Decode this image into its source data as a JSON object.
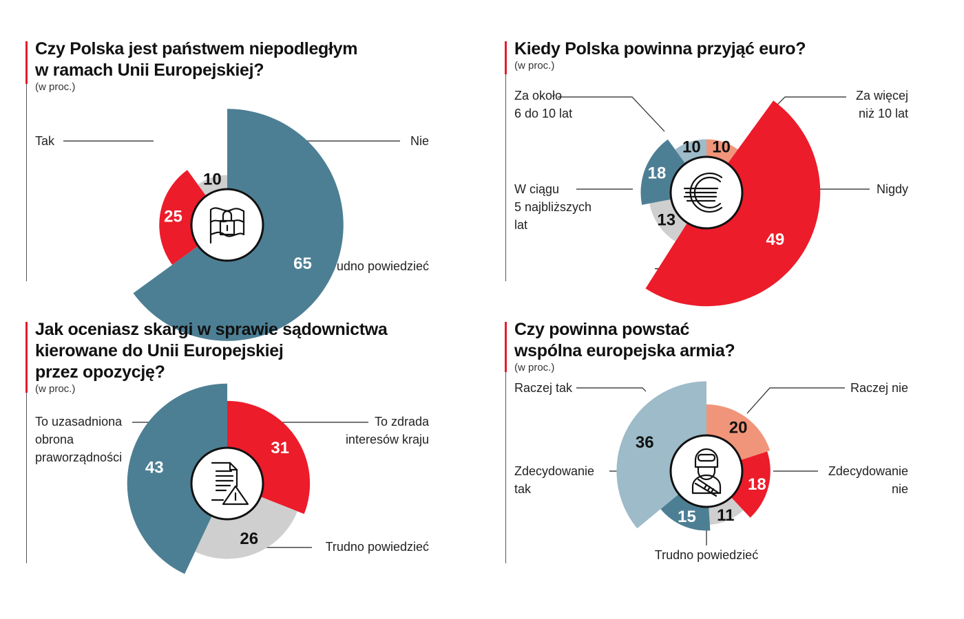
{
  "colors": {
    "accent": "#e31b2c",
    "dark_teal": "#4d7f94",
    "light_teal": "#9dbbc8",
    "red": "#ec1c2a",
    "salmon": "#f1957a",
    "gray": "#cfcfcf"
  },
  "chart_data": [
    {
      "type": "pie",
      "variant": "polar-area",
      "title": "Czy Polska jest państwem niepodległym w ramach Unii Europejskiej?",
      "title_lines": [
        "Czy Polska jest państwem niepodległym",
        "w ramach Unii Europejskiej?"
      ],
      "unit": "(w proc.)",
      "icon": "flag-padlock-icon",
      "slices": [
        {
          "label": "Tak",
          "label_lines": [
            "Tak"
          ],
          "value": 65,
          "color": "#4d7f94",
          "text_color": "#ffffff"
        },
        {
          "label": "Nie",
          "label_lines": [
            "Nie"
          ],
          "value": 25,
          "color": "#ec1c2a",
          "text_color": "#ffffff"
        },
        {
          "label": "Trudno powiedzieć",
          "label_lines": [
            "Trudno powiedzieć"
          ],
          "value": 10,
          "color": "#cfcfcf",
          "text_color": "#111111"
        }
      ]
    },
    {
      "type": "pie",
      "variant": "polar-area",
      "title": "Kiedy Polska powinna przyjąć euro?",
      "title_lines": [
        "Kiedy Polska powinna przyjąć euro?"
      ],
      "unit": "(w proc.)",
      "icon": "euro-icon",
      "slices": [
        {
          "label": "Za więcej niż 10 lat",
          "label_lines": [
            "Za więcej",
            "niż 10 lat"
          ],
          "value": 10,
          "color": "#f1957a",
          "text_color": "#111111"
        },
        {
          "label": "Nigdy",
          "label_lines": [
            "Nigdy"
          ],
          "value": 49,
          "color": "#ec1c2a",
          "text_color": "#ffffff"
        },
        {
          "label": "Trudno powiedzieć",
          "label_lines": [
            "Trudno powiedzieć"
          ],
          "value": 13,
          "color": "#cfcfcf",
          "text_color": "#111111"
        },
        {
          "label": "W ciągu 5 najbliższych lat",
          "label_lines": [
            "W ciągu",
            "5 najbliższych",
            "lat"
          ],
          "value": 18,
          "color": "#4d7f94",
          "text_color": "#ffffff"
        },
        {
          "label": "Za około 6 do 10 lat",
          "label_lines": [
            "Za około",
            "6 do 10 lat"
          ],
          "value": 10,
          "color": "#9dbbc8",
          "text_color": "#111111"
        }
      ]
    },
    {
      "type": "pie",
      "variant": "polar-area",
      "title": "Jak oceniasz skargi w sprawie sądownictwa kierowane do Unii Europejskiej przez opozycję?",
      "title_lines": [
        "Jak oceniasz skargi w sprawie sądownictwa",
        "kierowane do Unii Europejskiej",
        "przez opozycję?"
      ],
      "unit": "(w proc.)",
      "icon": "document-warning-icon",
      "slices": [
        {
          "label": "To zdrada interesów kraju",
          "label_lines": [
            "To zdrada",
            "interesów kraju"
          ],
          "value": 31,
          "color": "#ec1c2a",
          "text_color": "#ffffff"
        },
        {
          "label": "Trudno powiedzieć",
          "label_lines": [
            "Trudno powiedzieć"
          ],
          "value": 26,
          "color": "#cfcfcf",
          "text_color": "#111111"
        },
        {
          "label": "To uzasadniona obrona praworządności",
          "label_lines": [
            "To uzasadniona",
            "obrona",
            "praworządności"
          ],
          "value": 43,
          "color": "#4d7f94",
          "text_color": "#ffffff"
        }
      ]
    },
    {
      "type": "pie",
      "variant": "polar-area",
      "title": "Czy powinna powstać wspólna europejska armia?",
      "title_lines": [
        "Czy powinna powstać",
        "wspólna europejska armia?"
      ],
      "unit": "(w proc.)",
      "icon": "soldier-icon",
      "slices": [
        {
          "label": "Raczej nie",
          "label_lines": [
            "Raczej nie"
          ],
          "value": 20,
          "color": "#f1957a",
          "text_color": "#111111"
        },
        {
          "label": "Zdecydowanie nie",
          "label_lines": [
            "Zdecydowanie",
            "nie"
          ],
          "value": 18,
          "color": "#ec1c2a",
          "text_color": "#ffffff"
        },
        {
          "label": "Trudno powiedzieć",
          "label_lines": [
            "Trudno powiedzieć"
          ],
          "value": 11,
          "color": "#cfcfcf",
          "text_color": "#111111"
        },
        {
          "label": "Zdecydowanie tak",
          "label_lines": [
            "Zdecydowanie",
            "tak"
          ],
          "value": 15,
          "color": "#4d7f94",
          "text_color": "#ffffff"
        },
        {
          "label": "Raczej tak",
          "label_lines": [
            "Raczej tak"
          ],
          "value": 36,
          "color": "#9dbbc8",
          "text_color": "#111111"
        }
      ]
    }
  ]
}
